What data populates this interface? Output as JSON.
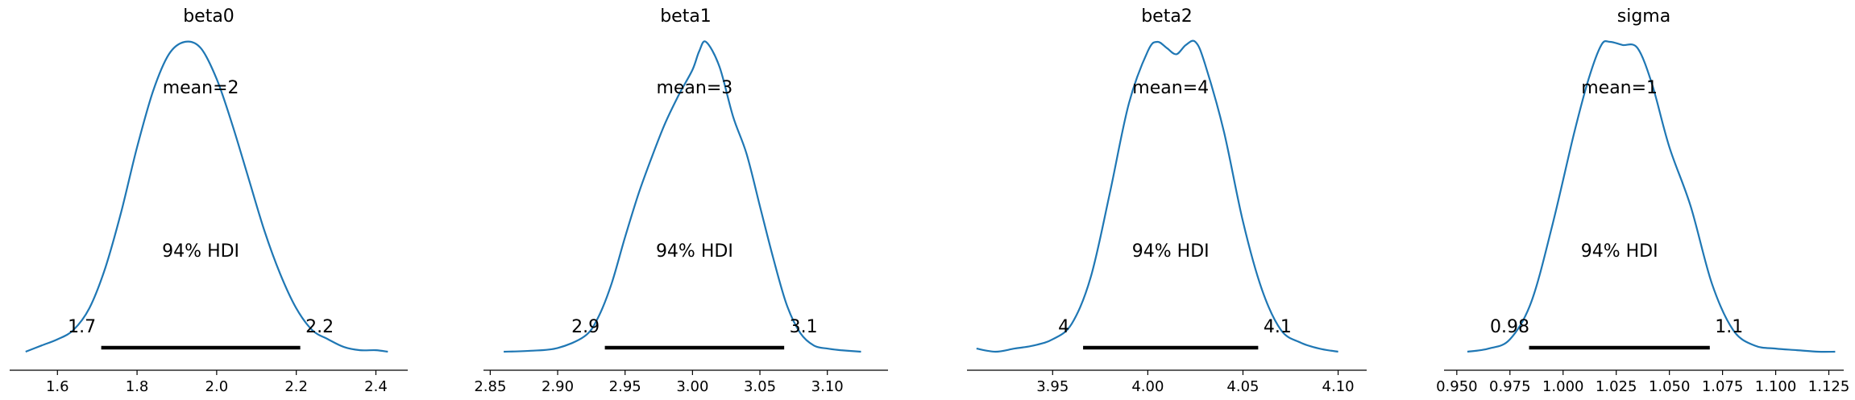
{
  "chart_data": [
    {
      "type": "line",
      "title": "beta0",
      "mean_label": "mean=2",
      "hdi_label": "94% HDI",
      "hdi": [
        1.71,
        2.21
      ],
      "hdi_low_label": "1.7",
      "hdi_high_label": "2.2",
      "xlim": [
        1.48,
        2.48
      ],
      "ticks": [
        1.6,
        1.8,
        2.0,
        2.2,
        2.4
      ],
      "tick_labels": [
        "1.6",
        "1.8",
        "2.0",
        "2.2",
        "2.4"
      ],
      "density": {
        "x": [
          1.52,
          1.56,
          1.6,
          1.64,
          1.68,
          1.72,
          1.76,
          1.8,
          1.84,
          1.88,
          1.92,
          1.96,
          2.0,
          2.04,
          2.08,
          2.12,
          2.16,
          2.2,
          2.24,
          2.28,
          2.32,
          2.36,
          2.4,
          2.43
        ],
        "y": [
          0.0,
          0.02,
          0.04,
          0.07,
          0.14,
          0.27,
          0.45,
          0.66,
          0.84,
          0.96,
          1.0,
          0.98,
          0.88,
          0.73,
          0.56,
          0.39,
          0.25,
          0.14,
          0.07,
          0.04,
          0.015,
          0.005,
          0.005,
          0.0
        ]
      }
    },
    {
      "type": "line",
      "title": "beta1",
      "mean_label": "mean=3",
      "hdi_label": "94% HDI",
      "hdi": [
        2.935,
        3.068
      ],
      "hdi_low_label": "2.9",
      "hdi_high_label": "3.1",
      "xlim": [
        2.845,
        3.145
      ],
      "ticks": [
        2.85,
        2.9,
        2.95,
        3.0,
        3.05,
        3.1
      ],
      "tick_labels": [
        "2.85",
        "2.90",
        "2.95",
        "3.00",
        "3.05",
        "3.10"
      ],
      "density": {
        "x": [
          2.86,
          2.88,
          2.9,
          2.92,
          2.93,
          2.94,
          2.95,
          2.96,
          2.97,
          2.98,
          2.99,
          3.0,
          3.005,
          3.01,
          3.02,
          3.03,
          3.04,
          3.05,
          3.06,
          3.07,
          3.08,
          3.09,
          3.1,
          3.11,
          3.125
        ],
        "y": [
          0.0,
          0.003,
          0.012,
          0.05,
          0.11,
          0.22,
          0.37,
          0.51,
          0.63,
          0.74,
          0.83,
          0.91,
          0.97,
          1.0,
          0.92,
          0.76,
          0.64,
          0.47,
          0.3,
          0.15,
          0.06,
          0.02,
          0.01,
          0.005,
          0.0
        ]
      }
    },
    {
      "type": "line",
      "title": "beta2",
      "mean_label": "mean=4",
      "hdi_label": "94% HDI",
      "hdi": [
        3.966,
        4.058
      ],
      "hdi_low_label": "4",
      "hdi_high_label": "4.1",
      "xlim": [
        3.905,
        4.115
      ],
      "ticks": [
        3.95,
        4.0,
        4.05,
        4.1
      ],
      "tick_labels": [
        "3.95",
        "4.00",
        "4.05",
        "4.10"
      ],
      "density": {
        "x": [
          3.91,
          3.92,
          3.93,
          3.94,
          3.95,
          3.96,
          3.97,
          3.98,
          3.99,
          4.0,
          4.005,
          4.01,
          4.015,
          4.02,
          4.025,
          4.03,
          4.04,
          4.05,
          4.06,
          4.07,
          4.08,
          4.09,
          4.1
        ],
        "y": [
          0.01,
          0.0,
          0.01,
          0.02,
          0.04,
          0.09,
          0.24,
          0.51,
          0.8,
          0.97,
          1.0,
          0.98,
          0.96,
          0.99,
          1.0,
          0.93,
          0.71,
          0.42,
          0.2,
          0.07,
          0.03,
          0.01,
          0.0
        ]
      }
    },
    {
      "type": "line",
      "title": "sigma",
      "mean_label": "mean=1",
      "hdi_label": "94% HDI",
      "hdi": [
        0.984,
        1.069
      ],
      "hdi_low_label": "0.98",
      "hdi_high_label": "1.1",
      "xlim": [
        0.944,
        1.132
      ],
      "ticks": [
        0.95,
        0.975,
        1.0,
        1.025,
        1.05,
        1.075,
        1.1,
        1.125
      ],
      "tick_labels": [
        "0.950",
        "0.975",
        "1.000",
        "1.025",
        "1.050",
        "1.075",
        "1.100",
        "1.125"
      ],
      "density": {
        "x": [
          0.955,
          0.965,
          0.975,
          0.985,
          0.995,
          1.005,
          1.012,
          1.018,
          1.022,
          1.028,
          1.035,
          1.042,
          1.05,
          1.06,
          1.07,
          1.08,
          1.09,
          1.1,
          1.11,
          1.12,
          1.128
        ],
        "y": [
          0.0,
          0.01,
          0.04,
          0.16,
          0.41,
          0.7,
          0.88,
          0.99,
          1.0,
          0.99,
          0.98,
          0.86,
          0.66,
          0.47,
          0.22,
          0.07,
          0.02,
          0.01,
          0.005,
          0.0,
          0.0
        ]
      }
    }
  ],
  "colors": {
    "line": "#1f77b4",
    "hdi_bar": "#000000",
    "axis": "#000000"
  }
}
